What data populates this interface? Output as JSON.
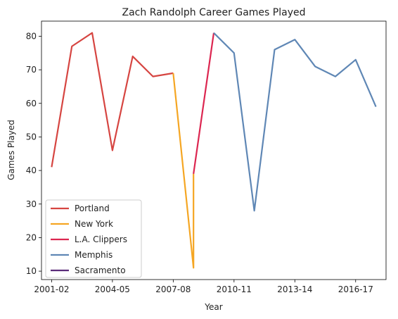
{
  "chart_data": {
    "type": "line",
    "title": "Zach Randolph Career Games Played",
    "xlabel": "Year",
    "ylabel": "Games Played",
    "x_tick_labels": [
      "2001-02",
      "2004-05",
      "2007-08",
      "2010-11",
      "2013-14",
      "2016-17"
    ],
    "x_tick_indices": [
      0,
      3,
      6,
      9,
      12,
      15
    ],
    "y_ticks": [
      10,
      20,
      30,
      40,
      50,
      60,
      70,
      80
    ],
    "xlim": [
      -0.5,
      16.5
    ],
    "ylim": [
      7.5,
      84.5
    ],
    "legend_position": "lower-left",
    "series": [
      {
        "name": "Portland",
        "color": "#d64541",
        "points": [
          [
            0,
            41
          ],
          [
            1,
            77
          ],
          [
            2,
            81
          ],
          [
            3,
            46
          ],
          [
            4,
            74
          ],
          [
            5,
            68
          ],
          [
            6,
            69
          ]
        ]
      },
      {
        "name": "New York",
        "color": "#f5a623",
        "points": [
          [
            6,
            69
          ],
          [
            7,
            11
          ],
          [
            7,
            39
          ]
        ]
      },
      {
        "name": "L.A. Clippers",
        "color": "#dc2650",
        "points": [
          [
            7,
            39
          ],
          [
            8,
            81
          ]
        ]
      },
      {
        "name": "Memphis",
        "color": "#5f87b5",
        "points": [
          [
            8,
            81
          ],
          [
            9,
            75
          ],
          [
            10,
            28
          ],
          [
            11,
            76
          ],
          [
            12,
            79
          ],
          [
            13,
            71
          ],
          [
            14,
            68
          ],
          [
            15,
            73
          ],
          [
            16,
            59
          ]
        ]
      },
      {
        "name": "Sacramento",
        "color": "#5b2c7a",
        "points": []
      }
    ]
  }
}
